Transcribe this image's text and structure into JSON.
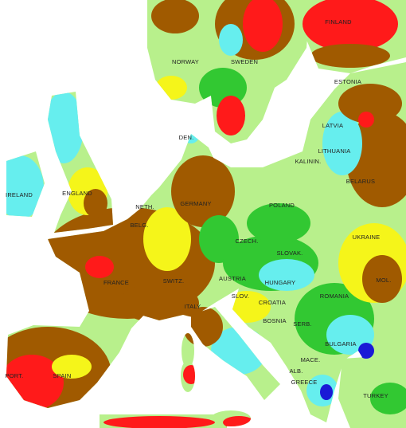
{
  "labels": [
    "FINLAND",
    "NORWAY",
    "SWEDEN",
    "ESTONIA",
    "LATVIA",
    "LITHUANIA",
    "KALININ.",
    "BELARUS",
    "IRELAND",
    "ENGLAND",
    "DEN.",
    "NETH.",
    "BELG.",
    "GERMANY",
    "POLAND",
    "UKRAINE",
    "CZECH.",
    "SLOVAK.",
    "FRANCE",
    "SWITZ.",
    "AUSTRIA",
    "HUNGARY",
    "MOL.",
    "ROMANIA",
    "SLOV.",
    "CROATIA",
    "BOSNIA",
    "SERB.",
    "BULGARIA",
    "ITALY",
    "MACE.",
    "ALB.",
    "PORT.",
    "SPAIN",
    "GREECE",
    "TURKEY"
  ]
}
